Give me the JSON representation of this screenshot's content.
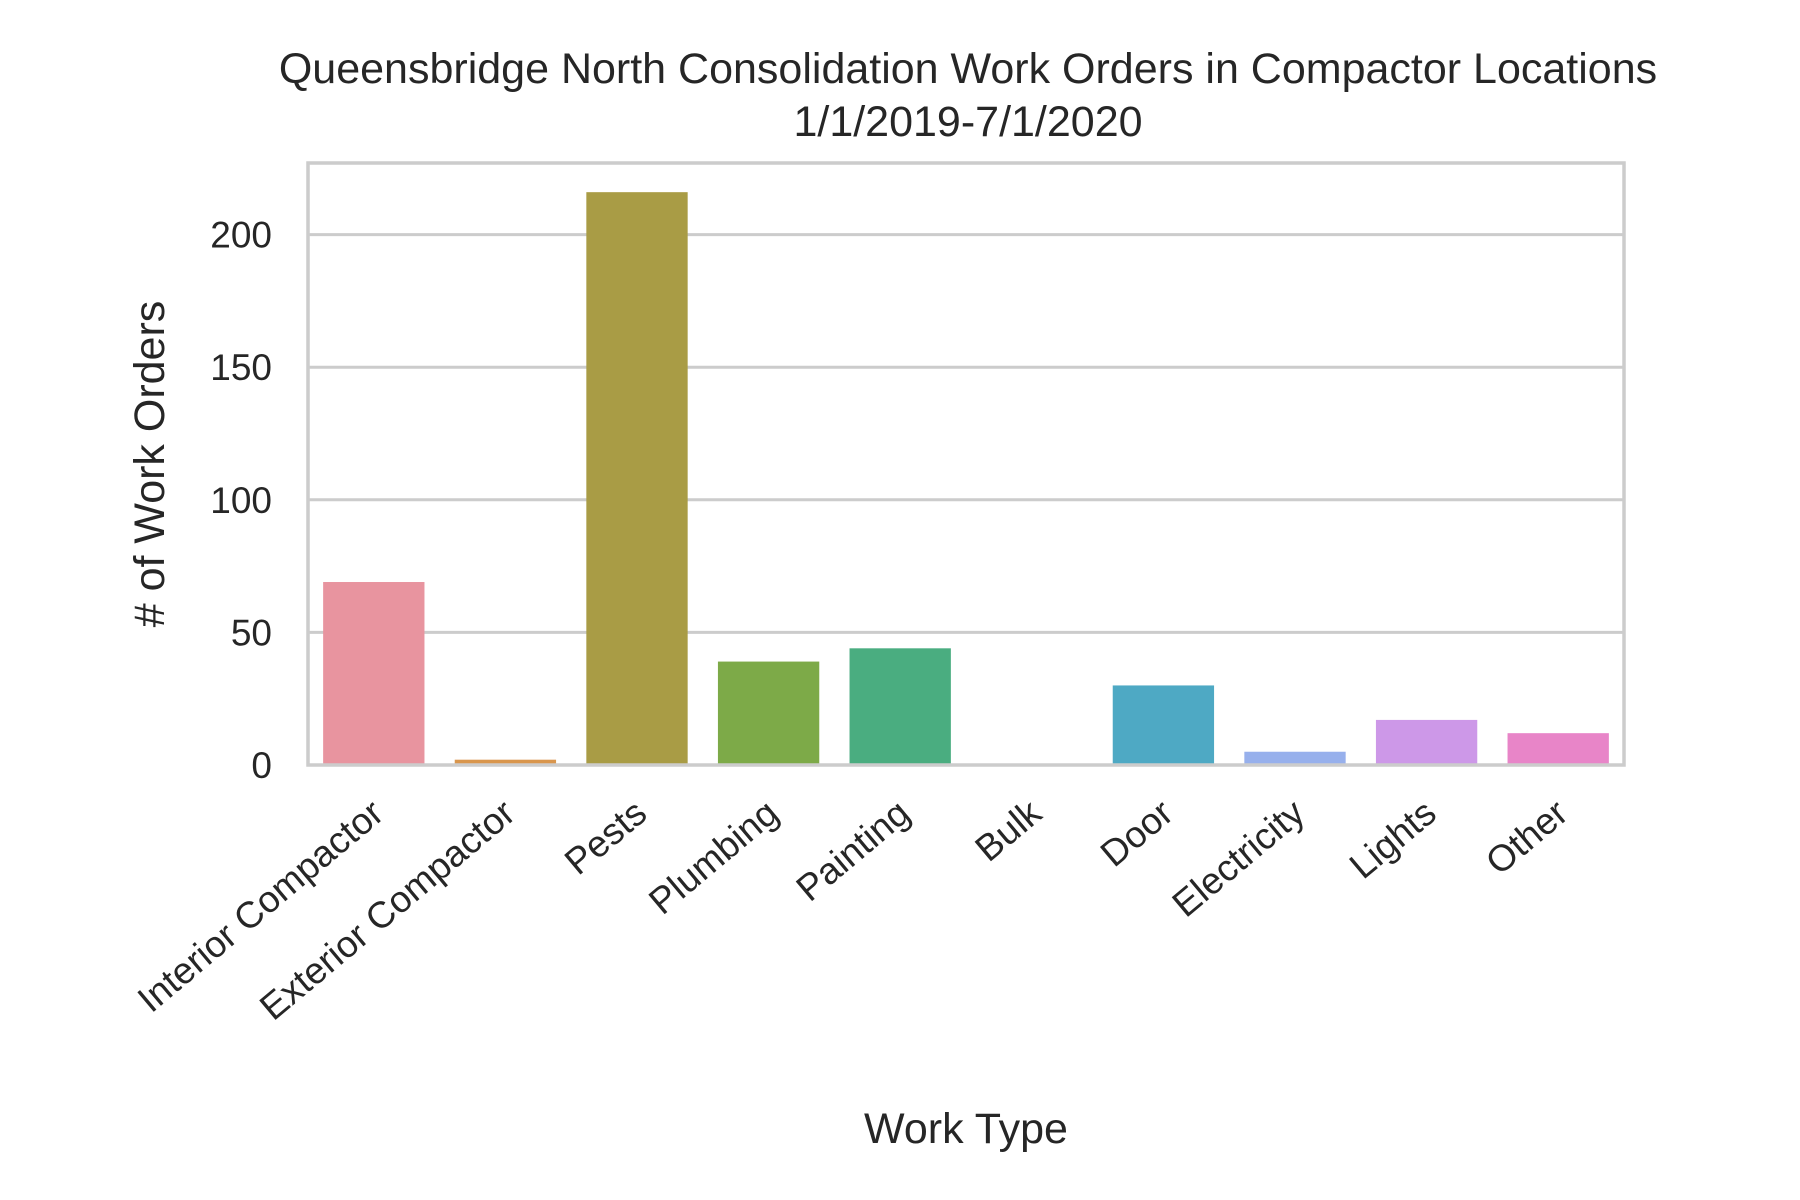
{
  "chart_data": {
    "type": "bar",
    "title": "Queensbridge North Consolidation Work Orders in Compactor Locations",
    "subtitle": "1/1/2019-7/1/2020",
    "xlabel": "Work Type",
    "ylabel": "# of Work Orders",
    "categories": [
      "Interior Compactor",
      "Exterior Compactor",
      "Pests",
      "Plumbing",
      "Painting",
      "Bulk",
      "Door",
      "Electricity",
      "Lights",
      "Other"
    ],
    "values": [
      69,
      2,
      216,
      39,
      44,
      0,
      30,
      5,
      17,
      12
    ],
    "colors": [
      "#e8949f",
      "#d9964d",
      "#a99c45",
      "#7daa48",
      "#4aad80",
      "#4caf91",
      "#4ea9c4",
      "#97b0ec",
      "#cd98e8",
      "#e885c8"
    ],
    "yticks": [
      0,
      50,
      100,
      150,
      200
    ],
    "ylim": [
      0,
      227
    ],
    "grid": true,
    "legend": "none"
  }
}
